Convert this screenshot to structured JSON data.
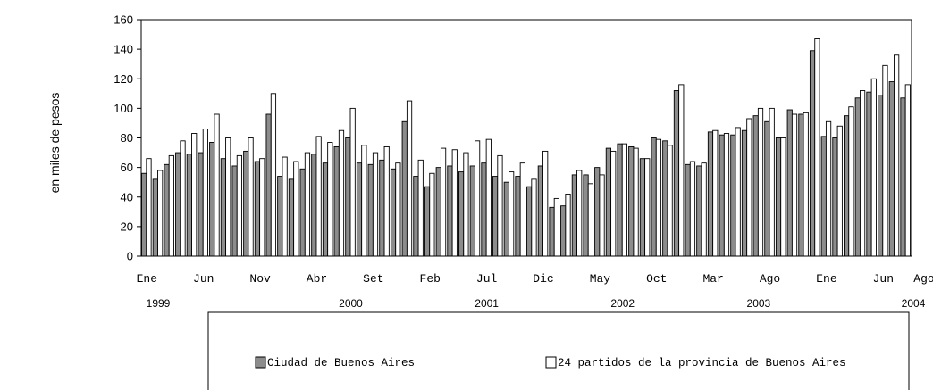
{
  "chart_data": {
    "type": "bar",
    "ylabel": "en miles de pesos",
    "ylim": [
      0,
      160
    ],
    "yticks": [
      0,
      20,
      40,
      60,
      80,
      100,
      120,
      140,
      160
    ],
    "grid": false,
    "legend_position": "bottom",
    "month_labels": [
      {
        "index": 0,
        "label": "Ene"
      },
      {
        "index": 5,
        "label": "Jun"
      },
      {
        "index": 10,
        "label": "Nov"
      },
      {
        "index": 15,
        "label": "Abr"
      },
      {
        "index": 20,
        "label": "Set"
      },
      {
        "index": 25,
        "label": "Feb"
      },
      {
        "index": 30,
        "label": "Jul"
      },
      {
        "index": 35,
        "label": "Dic"
      },
      {
        "index": 40,
        "label": "May"
      },
      {
        "index": 45,
        "label": "Oct"
      },
      {
        "index": 50,
        "label": "Mar"
      },
      {
        "index": 55,
        "label": "Ago"
      },
      {
        "index": 60,
        "label": "Ene"
      },
      {
        "index": 65,
        "label": "Jun"
      },
      {
        "index": 67,
        "label": "Ago"
      }
    ],
    "year_labels": [
      {
        "index": 1,
        "label": "1999"
      },
      {
        "index": 18,
        "label": "2000"
      },
      {
        "index": 30,
        "label": "2001"
      },
      {
        "index": 42,
        "label": "2002"
      },
      {
        "index": 54,
        "label": "2003"
      },
      {
        "index": 67,
        "label": "2004"
      }
    ],
    "series": [
      {
        "name": "Ciudad de Buenos Aires",
        "color": "#8c8c8c",
        "values": [
          56,
          52,
          62,
          70,
          69,
          70,
          77,
          66,
          61,
          71,
          64,
          96,
          54,
          52,
          59,
          69,
          63,
          74,
          80,
          63,
          62,
          65,
          59,
          91,
          54,
          47,
          60,
          61,
          57,
          61,
          63,
          54,
          50,
          54,
          47,
          61,
          33,
          34,
          55,
          55,
          60,
          73,
          76,
          74,
          66,
          80,
          78,
          112,
          62,
          61,
          84,
          82,
          82,
          85,
          95,
          91,
          80,
          99,
          96,
          139,
          81,
          80,
          95,
          107,
          111,
          109,
          118,
          107
        ]
      },
      {
        "name": "24 partidos de la provincia de Buenos Aires",
        "color": "#ffffff",
        "values": [
          66,
          58,
          68,
          78,
          83,
          86,
          96,
          80,
          68,
          80,
          66,
          110,
          67,
          64,
          70,
          81,
          77,
          85,
          100,
          75,
          70,
          74,
          63,
          105,
          65,
          56,
          73,
          72,
          70,
          78,
          79,
          68,
          57,
          63,
          52,
          71,
          39,
          42,
          58,
          49,
          55,
          71,
          76,
          73,
          66,
          79,
          75,
          116,
          64,
          63,
          85,
          83,
          87,
          93,
          100,
          100,
          80,
          96,
          97,
          147,
          91,
          88,
          101,
          112,
          120,
          129,
          136,
          116
        ]
      }
    ]
  }
}
